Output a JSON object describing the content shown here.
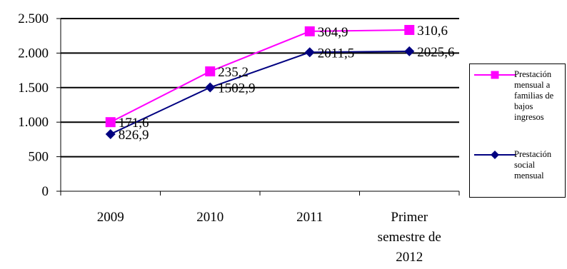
{
  "chart_data": {
    "type": "line",
    "categories": [
      "2009",
      "2010",
      "2011",
      "Primer semestre de 2012"
    ],
    "category_labels": [
      [
        "2009"
      ],
      [
        "2010"
      ],
      [
        "2011"
      ],
      [
        "Primer",
        "semestre de",
        "2012"
      ]
    ],
    "ylim": [
      0,
      2500
    ],
    "yticks": [
      0,
      500,
      1000,
      1500,
      2000,
      2500
    ],
    "ytick_labels": [
      "0",
      "500",
      "1.000",
      "1.500",
      "2.000",
      "2.500"
    ],
    "grid": true,
    "legend_position": "right",
    "series": [
      {
        "name": "Prestación mensual a familias de bajos ingresos",
        "color": "#ff00ff",
        "marker": "square",
        "values": [
          1000,
          1735,
          2315,
          2335
        ],
        "data_labels": [
          "171,6",
          "235,2",
          "304,9",
          "310,6"
        ]
      },
      {
        "name": "Prestación social mensual",
        "color": "#000080",
        "marker": "diamond",
        "values": [
          826.9,
          1502.9,
          2011.5,
          2025.6
        ],
        "data_labels": [
          "826,9",
          "1502,9",
          "2011,5",
          "2025,6"
        ]
      }
    ],
    "legend": {
      "items": [
        "Prestación\nmensual a\nfamilias de\nbajos\ningresos",
        "Prestación\nsocial\nmensual"
      ]
    }
  }
}
